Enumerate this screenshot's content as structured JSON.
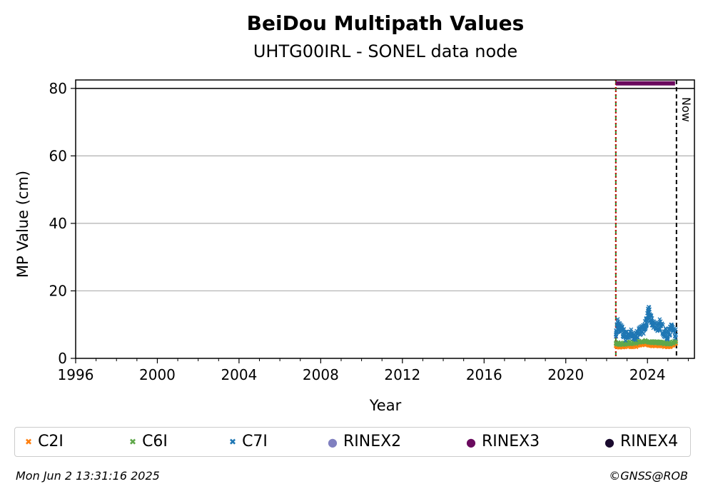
{
  "chart_data": {
    "type": "scatter",
    "title": "BeiDou Multipath Values",
    "subtitle": "UHTG00IRL - SONEL data node",
    "xlabel": "Year",
    "ylabel": "MP Value (cm)",
    "xlim": [
      1996,
      2026.3
    ],
    "ylim": [
      0,
      82.5
    ],
    "x_ticks": [
      "1996",
      "2000",
      "2004",
      "2008",
      "2012",
      "2016",
      "2020",
      "2024"
    ],
    "y_ticks": [
      "0",
      "20",
      "40",
      "60",
      "80"
    ],
    "grid": "y",
    "legend_position": "bottom",
    "series": [
      {
        "name": "C2I",
        "color": "#ff7f0e",
        "marker": "x",
        "x": [
          2022.45,
          2022.7,
          2023.0,
          2023.3,
          2023.6,
          2023.9,
          2024.2,
          2024.5,
          2024.8,
          2025.1,
          2025.4
        ],
        "y": [
          3.8,
          3.5,
          3.7,
          3.6,
          3.9,
          4.2,
          4.0,
          3.8,
          3.7,
          3.6,
          4.5
        ]
      },
      {
        "name": "C6I",
        "color": "#5fa84a",
        "marker": "x",
        "x": [
          2022.45,
          2022.7,
          2023.0,
          2023.3,
          2023.6,
          2023.9,
          2024.2,
          2024.5,
          2024.8,
          2025.1,
          2025.4
        ],
        "y": [
          4.5,
          4.3,
          4.4,
          4.6,
          4.8,
          5.0,
          4.9,
          4.6,
          4.5,
          4.4,
          5.0
        ]
      },
      {
        "name": "C7I",
        "color": "#1f77b4",
        "marker": "x",
        "x": [
          2022.45,
          2022.55,
          2022.7,
          2022.85,
          2023.0,
          2023.2,
          2023.4,
          2023.6,
          2023.8,
          2023.95,
          2024.05,
          2024.2,
          2024.4,
          2024.6,
          2024.8,
          2025.0,
          2025.2,
          2025.4
        ],
        "y": [
          7.0,
          10.5,
          8.5,
          7.2,
          6.5,
          7.0,
          6.8,
          7.5,
          8.5,
          10.5,
          14.5,
          11.0,
          9.0,
          10.0,
          8.0,
          6.5,
          9.5,
          7.0
        ]
      },
      {
        "name": "RINEX2",
        "color": "#8080c0",
        "marker": "o",
        "x": [],
        "y": []
      },
      {
        "name": "RINEX3",
        "color": "#6a0a5e",
        "marker": "o",
        "x": [
          2022.45,
          2025.35
        ],
        "y": [
          81.5,
          81.5
        ]
      },
      {
        "name": "RINEX4",
        "color": "#1a0a2e",
        "marker": "o",
        "x": [],
        "y": []
      }
    ],
    "vertical_lines": [
      {
        "x": 2022.45,
        "color": "#2a8a2a",
        "style": "dashed"
      },
      {
        "x": 2022.45,
        "color": "#cc0000",
        "style": "dotted"
      },
      {
        "x": 2025.42,
        "color": "#000000",
        "style": "dashed",
        "label": "Now"
      }
    ],
    "hlines": [
      {
        "y": 80,
        "color": "#000000"
      }
    ]
  },
  "footer": {
    "timestamp": "Mon Jun  2 13:31:16 2025",
    "credit": "©GNSS@ROB"
  }
}
